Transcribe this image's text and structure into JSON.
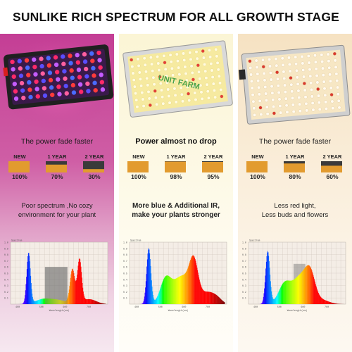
{
  "title": "SUNLIKE RICH SPECTRUM FOR ALL GROWTH STAGE",
  "panels": [
    {
      "subhead": "The power fade faster",
      "fade": [
        {
          "year": "NEW",
          "pct": "100%",
          "level": 1.0
        },
        {
          "year": "1 YEAR",
          "pct": "70%",
          "level": 0.7
        },
        {
          "year": "2 YEAR",
          "pct": "30%",
          "level": 0.3
        }
      ],
      "desc": [
        "Poor spectrum ,No cozy",
        "environment for your plant"
      ],
      "chart": {
        "ylabel": "Spectrum",
        "xlabel": "Wavelength(nm)",
        "yticks": [
          "1.0",
          "0.9",
          "0.8",
          "0.7",
          "0.6",
          "0.5",
          "0.4",
          "0.3",
          "0.2",
          "0.1"
        ],
        "xticks": [
          "400",
          "500",
          "600",
          "700"
        ]
      }
    },
    {
      "subhead": "Power almost no drop",
      "fade": [
        {
          "year": "NEW",
          "pct": "100%",
          "level": 1.0
        },
        {
          "year": "1 YEAR",
          "pct": "98%",
          "level": 0.98
        },
        {
          "year": "2 YEAR",
          "pct": "95%",
          "level": 0.95
        }
      ],
      "lamp_brand": "UNIT FARM",
      "desc": [
        "More blue & Additional IR,",
        "make your plants stronger"
      ],
      "chart": {
        "ylabel": "Spectrum",
        "xlabel": "Wavelength(nm)",
        "yticks": [
          "1.0",
          "0.9",
          "0.8",
          "0.7",
          "0.6",
          "0.5",
          "0.4",
          "0.3",
          "0.2",
          "0.1"
        ],
        "xticks": [
          "400",
          "500",
          "600",
          "700"
        ]
      }
    },
    {
      "subhead": "The power fade faster",
      "fade": [
        {
          "year": "NEW",
          "pct": "100%",
          "level": 1.0
        },
        {
          "year": "1 YEAR",
          "pct": "80%",
          "level": 0.8
        },
        {
          "year": "2 YEAR",
          "pct": "60%",
          "level": 0.6
        }
      ],
      "desc": [
        "Less red light,",
        "Less buds and flowers"
      ],
      "chart": {
        "ylabel": "Spectrum",
        "xlabel": "Wavelength(nm)",
        "yticks": [
          "1.0",
          "0.9",
          "0.8",
          "0.7",
          "0.6",
          "0.5",
          "0.4",
          "0.3",
          "0.2",
          "0.1"
        ],
        "xticks": [
          "400",
          "500",
          "600",
          "700"
        ]
      }
    }
  ],
  "colors": {
    "bar_fill": "#e29b2f",
    "bar_empty": "#3a3a3a",
    "panel_left": "#c43e95",
    "panel_middle": "#fbf5d5",
    "panel_right": "#f6e2c2"
  }
}
